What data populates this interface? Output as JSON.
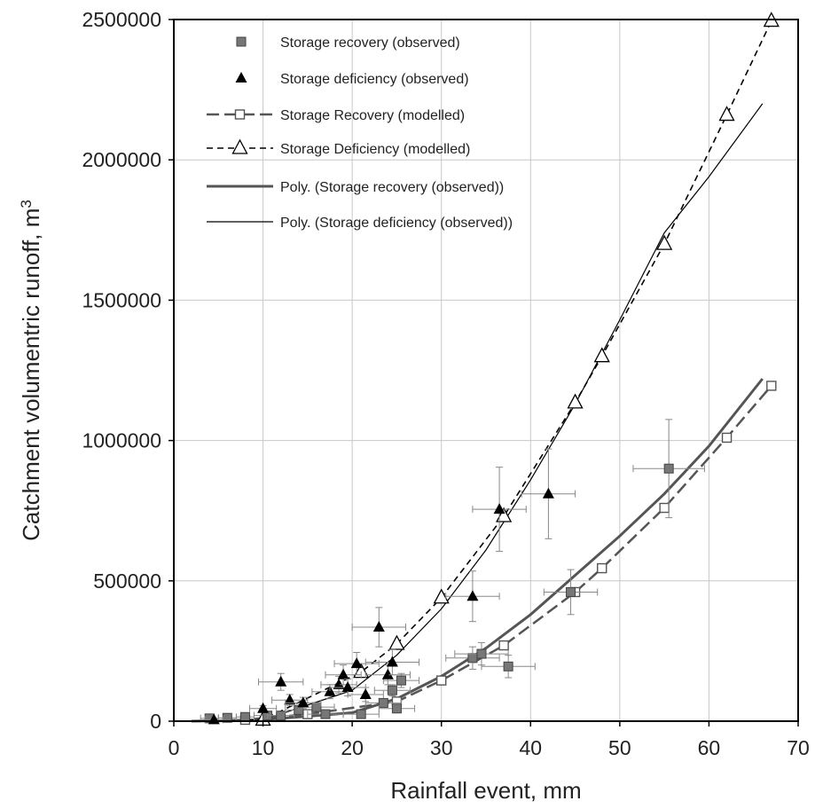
{
  "chart_data": {
    "type": "scatter",
    "title": "",
    "xlabel": "Rainfall event, mm",
    "ylabel": "Catchment volumentric runoff, m",
    "ylabel_superscript": "3",
    "xlim": [
      0,
      70
    ],
    "ylim": [
      0,
      2500000
    ],
    "x_ticks": [
      "0",
      "10",
      "20",
      "30",
      "40",
      "50",
      "60",
      "70"
    ],
    "y_ticks": [
      "0",
      "500000",
      "1000000",
      "1500000",
      "2000000",
      "2500000"
    ],
    "grid": true,
    "legend_position": "top-left",
    "series": [
      {
        "name": "Storage recovery (observed)",
        "kind": "scatter",
        "marker": "square-filled",
        "color": "#777777",
        "points": [
          {
            "x": 4,
            "y": 10000,
            "xerr": 1,
            "yerr": 5000
          },
          {
            "x": 6,
            "y": 12000,
            "xerr": 1,
            "yerr": 5000
          },
          {
            "x": 8,
            "y": 15000,
            "xerr": 1,
            "yerr": 5000
          },
          {
            "x": 10.5,
            "y": 20000,
            "xerr": 1.5,
            "yerr": 8000
          },
          {
            "x": 12,
            "y": 20000,
            "xerr": 1.5,
            "yerr": 8000
          },
          {
            "x": 14,
            "y": 40000,
            "xerr": 1.5,
            "yerr": 10000
          },
          {
            "x": 16,
            "y": 50000,
            "xerr": 2,
            "yerr": 10000
          },
          {
            "x": 17,
            "y": 25000,
            "xerr": 2,
            "yerr": 10000
          },
          {
            "x": 21,
            "y": 25000,
            "xerr": 2,
            "yerr": 10000
          },
          {
            "x": 23.5,
            "y": 65000,
            "xerr": 2,
            "yerr": 15000
          },
          {
            "x": 24.5,
            "y": 110000,
            "xerr": 2,
            "yerr": 20000
          },
          {
            "x": 25,
            "y": 45000,
            "xerr": 2,
            "yerr": 15000
          },
          {
            "x": 25.5,
            "y": 145000,
            "xerr": 2,
            "yerr": 25000
          },
          {
            "x": 33.5,
            "y": 225000,
            "xerr": 3,
            "yerr": 40000
          },
          {
            "x": 34.5,
            "y": 240000,
            "xerr": 3,
            "yerr": 40000
          },
          {
            "x": 37.5,
            "y": 195000,
            "xerr": 3,
            "yerr": 40000
          },
          {
            "x": 44.5,
            "y": 460000,
            "xerr": 3,
            "yerr": 80000
          },
          {
            "x": 55.5,
            "y": 900000,
            "xerr": 4,
            "yerr": 175000
          }
        ]
      },
      {
        "name": "Storage deficiency (observed)",
        "kind": "scatter",
        "marker": "triangle-filled",
        "color": "#000000",
        "points": [
          {
            "x": 4.5,
            "y": 5000,
            "xerr": 1,
            "yerr": 5000
          },
          {
            "x": 10,
            "y": 45000,
            "xerr": 1.5,
            "yerr": 10000
          },
          {
            "x": 12,
            "y": 140000,
            "xerr": 2.5,
            "yerr": 30000
          },
          {
            "x": 13,
            "y": 75000,
            "xerr": 2,
            "yerr": 20000
          },
          {
            "x": 14.5,
            "y": 65000,
            "xerr": 2,
            "yerr": 20000
          },
          {
            "x": 17.5,
            "y": 105000,
            "xerr": 2,
            "yerr": 25000
          },
          {
            "x": 18.5,
            "y": 130000,
            "xerr": 2,
            "yerr": 30000
          },
          {
            "x": 19,
            "y": 165000,
            "xerr": 2,
            "yerr": 35000
          },
          {
            "x": 19.5,
            "y": 120000,
            "xerr": 2,
            "yerr": 30000
          },
          {
            "x": 20.5,
            "y": 205000,
            "xerr": 2.5,
            "yerr": 40000
          },
          {
            "x": 21.5,
            "y": 95000,
            "xerr": 2,
            "yerr": 25000
          },
          {
            "x": 23,
            "y": 335000,
            "xerr": 3,
            "yerr": 70000
          },
          {
            "x": 24,
            "y": 165000,
            "xerr": 2.5,
            "yerr": 35000
          },
          {
            "x": 24.5,
            "y": 210000,
            "xerr": 3,
            "yerr": 45000
          },
          {
            "x": 33.5,
            "y": 445000,
            "xerr": 3,
            "yerr": 90000
          },
          {
            "x": 36.5,
            "y": 755000,
            "xerr": 3,
            "yerr": 150000
          },
          {
            "x": 42,
            "y": 810000,
            "xerr": 3,
            "yerr": 160000
          }
        ]
      },
      {
        "name": "Storage Recovery (modelled)",
        "kind": "line",
        "marker": "square-open",
        "line_style": "long-dash",
        "color": "#555555",
        "points": [
          {
            "x": 5,
            "y": 0
          },
          {
            "x": 8,
            "y": 5000
          },
          {
            "x": 15,
            "y": 25000
          },
          {
            "x": 25,
            "y": 70000
          },
          {
            "x": 30,
            "y": 145000
          },
          {
            "x": 37,
            "y": 270000
          },
          {
            "x": 45,
            "y": 460000
          },
          {
            "x": 48,
            "y": 545000
          },
          {
            "x": 55,
            "y": 760000
          },
          {
            "x": 62,
            "y": 1010000
          },
          {
            "x": 67,
            "y": 1195000
          }
        ]
      },
      {
        "name": "Storage Deficiency (modelled)",
        "kind": "line",
        "marker": "triangle-open",
        "line_style": "dash",
        "color": "#000000",
        "points": [
          {
            "x": 7,
            "y": 0
          },
          {
            "x": 10,
            "y": 5000
          },
          {
            "x": 21,
            "y": 175000
          },
          {
            "x": 25,
            "y": 275000
          },
          {
            "x": 30,
            "y": 440000
          },
          {
            "x": 37,
            "y": 730000
          },
          {
            "x": 45,
            "y": 1135000
          },
          {
            "x": 48,
            "y": 1300000
          },
          {
            "x": 55,
            "y": 1700000
          },
          {
            "x": 62,
            "y": 2160000
          },
          {
            "x": 67,
            "y": 2495000
          }
        ]
      },
      {
        "name": "Poly. (Storage recovery (observed))",
        "kind": "line",
        "marker": "none",
        "line_style": "solid-thick",
        "color": "#555555",
        "points": [
          {
            "x": 2,
            "y": 0
          },
          {
            "x": 10,
            "y": 5000
          },
          {
            "x": 20,
            "y": 30000
          },
          {
            "x": 25,
            "y": 80000
          },
          {
            "x": 30,
            "y": 160000
          },
          {
            "x": 35,
            "y": 260000
          },
          {
            "x": 40,
            "y": 380000
          },
          {
            "x": 45,
            "y": 520000
          },
          {
            "x": 50,
            "y": 660000
          },
          {
            "x": 55,
            "y": 810000
          },
          {
            "x": 60,
            "y": 980000
          },
          {
            "x": 66,
            "y": 1220000
          }
        ]
      },
      {
        "name": "Poly. (Storage deficiency (observed))",
        "kind": "line",
        "marker": "none",
        "line_style": "solid-thin",
        "color": "#000000",
        "points": [
          {
            "x": 5,
            "y": 0
          },
          {
            "x": 10,
            "y": 5000
          },
          {
            "x": 20,
            "y": 110000
          },
          {
            "x": 25,
            "y": 235000
          },
          {
            "x": 30,
            "y": 400000
          },
          {
            "x": 35,
            "y": 610000
          },
          {
            "x": 40,
            "y": 860000
          },
          {
            "x": 45,
            "y": 1130000
          },
          {
            "x": 50,
            "y": 1430000
          },
          {
            "x": 55,
            "y": 1740000
          },
          {
            "x": 60,
            "y": 1940000
          },
          {
            "x": 66,
            "y": 2200000
          }
        ]
      }
    ]
  }
}
